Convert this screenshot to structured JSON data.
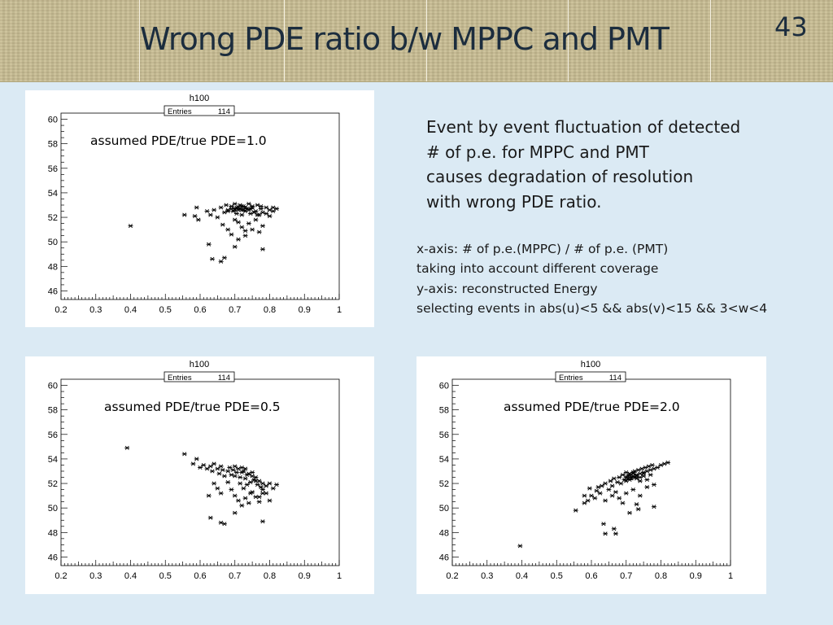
{
  "slide": {
    "title": "Wrong PDE ratio b/w MPPC and PMT",
    "page_number": "43"
  },
  "description": [
    "Event by event fluctuation of detected",
    "# of p.e. for MPPC and PMT",
    "causes degradation of resolution",
    "with wrong PDE ratio."
  ],
  "axis_notes": [
    "x-axis:  # of p.e.(MPPC) / # of p.e. (PMT)",
    "taking into account different coverage",
    "y-axis: reconstructed Energy",
    "selecting events in abs(u)<5 && abs(v)<15 && 3<w<4"
  ],
  "chart_data": [
    {
      "type": "scatter",
      "title": "h100",
      "stats_label": "Entries",
      "stats_value": "114",
      "annotation": "assumed PDE/true PDE=1.0",
      "xlim": [
        0.2,
        1.0
      ],
      "ylim": [
        45.3,
        60.5
      ],
      "xticks": [
        "0.2",
        "0.3",
        "0.4",
        "0.5",
        "0.6",
        "0.7",
        "0.8",
        "0.9",
        "1"
      ],
      "yticks": [
        "46",
        "48",
        "50",
        "52",
        "54",
        "56",
        "58",
        "60"
      ],
      "points": [
        [
          0.4,
          51.3
        ],
        [
          0.555,
          52.2
        ],
        [
          0.585,
          52.1
        ],
        [
          0.59,
          52.8
        ],
        [
          0.595,
          51.8
        ],
        [
          0.62,
          52.5
        ],
        [
          0.63,
          52.2
        ],
        [
          0.64,
          52.6
        ],
        [
          0.65,
          52.0
        ],
        [
          0.66,
          52.8
        ],
        [
          0.665,
          51.4
        ],
        [
          0.67,
          52.4
        ],
        [
          0.675,
          53.0
        ],
        [
          0.68,
          52.6
        ],
        [
          0.69,
          52.9
        ],
        [
          0.695,
          52.5
        ],
        [
          0.7,
          53.1
        ],
        [
          0.7,
          52.7
        ],
        [
          0.705,
          52.3
        ],
        [
          0.71,
          52.8
        ],
        [
          0.715,
          53.0
        ],
        [
          0.72,
          52.6
        ],
        [
          0.72,
          52.2
        ],
        [
          0.725,
          52.9
        ],
        [
          0.73,
          52.5
        ],
        [
          0.735,
          52.7
        ],
        [
          0.74,
          53.1
        ],
        [
          0.745,
          52.3
        ],
        [
          0.75,
          52.8
        ],
        [
          0.76,
          52.5
        ],
        [
          0.765,
          53.0
        ],
        [
          0.77,
          52.2
        ],
        [
          0.775,
          52.7
        ],
        [
          0.78,
          52.4
        ],
        [
          0.79,
          52.8
        ],
        [
          0.8,
          52.6
        ],
        [
          0.81,
          52.8
        ],
        [
          0.82,
          52.7
        ],
        [
          0.7,
          51.8
        ],
        [
          0.71,
          51.6
        ],
        [
          0.72,
          51.2
        ],
        [
          0.73,
          50.9
        ],
        [
          0.74,
          51.5
        ],
        [
          0.75,
          51.0
        ],
        [
          0.76,
          51.8
        ],
        [
          0.77,
          50.8
        ],
        [
          0.78,
          51.3
        ],
        [
          0.68,
          51.0
        ],
        [
          0.69,
          50.6
        ],
        [
          0.7,
          49.6
        ],
        [
          0.71,
          50.2
        ],
        [
          0.73,
          50.5
        ],
        [
          0.625,
          49.8
        ],
        [
          0.635,
          48.6
        ],
        [
          0.66,
          48.4
        ],
        [
          0.67,
          48.7
        ],
        [
          0.78,
          49.4
        ],
        [
          0.68,
          52.5
        ],
        [
          0.69,
          52.7
        ],
        [
          0.7,
          52.6
        ],
        [
          0.705,
          52.8
        ],
        [
          0.71,
          52.6
        ],
        [
          0.715,
          52.7
        ],
        [
          0.72,
          52.9
        ],
        [
          0.725,
          52.6
        ],
        [
          0.73,
          52.8
        ],
        [
          0.74,
          52.6
        ],
        [
          0.75,
          52.9
        ],
        [
          0.745,
          52.7
        ],
        [
          0.755,
          52.4
        ],
        [
          0.765,
          52.2
        ],
        [
          0.775,
          52.9
        ],
        [
          0.79,
          52.3
        ],
        [
          0.8,
          52.1
        ],
        [
          0.81,
          52.5
        ]
      ]
    },
    {
      "type": "scatter",
      "title": "h100",
      "stats_label": "Entries",
      "stats_value": "114",
      "annotation": "assumed PDE/true PDE=0.5",
      "xlim": [
        0.2,
        1.0
      ],
      "ylim": [
        45.3,
        60.5
      ],
      "xticks": [
        "0.2",
        "0.3",
        "0.4",
        "0.5",
        "0.6",
        "0.7",
        "0.8",
        "0.9",
        "1"
      ],
      "yticks": [
        "46",
        "48",
        "50",
        "52",
        "54",
        "56",
        "58",
        "60"
      ],
      "points": [
        [
          0.39,
          54.9
        ],
        [
          0.555,
          54.4
        ],
        [
          0.58,
          53.6
        ],
        [
          0.59,
          54.0
        ],
        [
          0.6,
          53.3
        ],
        [
          0.61,
          53.5
        ],
        [
          0.62,
          53.2
        ],
        [
          0.63,
          53.4
        ],
        [
          0.635,
          53.0
        ],
        [
          0.64,
          53.6
        ],
        [
          0.65,
          53.2
        ],
        [
          0.655,
          52.8
        ],
        [
          0.66,
          53.4
        ],
        [
          0.665,
          53.1
        ],
        [
          0.67,
          52.6
        ],
        [
          0.68,
          53.0
        ],
        [
          0.685,
          53.3
        ],
        [
          0.69,
          52.7
        ],
        [
          0.695,
          53.1
        ],
        [
          0.7,
          53.4
        ],
        [
          0.705,
          52.9
        ],
        [
          0.71,
          53.2
        ],
        [
          0.715,
          52.5
        ],
        [
          0.72,
          52.9
        ],
        [
          0.725,
          53.0
        ],
        [
          0.73,
          52.4
        ],
        [
          0.735,
          52.7
        ],
        [
          0.74,
          52.8
        ],
        [
          0.745,
          52.1
        ],
        [
          0.75,
          52.6
        ],
        [
          0.755,
          52.3
        ],
        [
          0.76,
          52.5
        ],
        [
          0.765,
          51.9
        ],
        [
          0.77,
          52.2
        ],
        [
          0.775,
          51.7
        ],
        [
          0.78,
          52.0
        ],
        [
          0.79,
          51.8
        ],
        [
          0.8,
          52.0
        ],
        [
          0.81,
          51.6
        ],
        [
          0.82,
          51.9
        ],
        [
          0.625,
          51.0
        ],
        [
          0.64,
          52.0
        ],
        [
          0.65,
          51.6
        ],
        [
          0.66,
          51.2
        ],
        [
          0.7,
          51.0
        ],
        [
          0.71,
          50.6
        ],
        [
          0.72,
          50.2
        ],
        [
          0.73,
          50.8
        ],
        [
          0.74,
          50.4
        ],
        [
          0.75,
          51.3
        ],
        [
          0.76,
          50.9
        ],
        [
          0.77,
          50.5
        ],
        [
          0.78,
          51.2
        ],
        [
          0.7,
          49.6
        ],
        [
          0.78,
          48.9
        ],
        [
          0.63,
          49.2
        ],
        [
          0.66,
          48.8
        ],
        [
          0.67,
          48.7
        ],
        [
          0.68,
          52.1
        ],
        [
          0.69,
          51.5
        ],
        [
          0.7,
          52.6
        ],
        [
          0.715,
          52.0
        ],
        [
          0.725,
          51.6
        ],
        [
          0.735,
          51.9
        ],
        [
          0.745,
          51.2
        ],
        [
          0.72,
          53.3
        ],
        [
          0.73,
          53.2
        ],
        [
          0.75,
          52.9
        ],
        [
          0.76,
          52.2
        ],
        [
          0.78,
          51.5
        ],
        [
          0.79,
          51.2
        ],
        [
          0.8,
          50.6
        ],
        [
          0.77,
          50.9
        ]
      ]
    },
    {
      "type": "scatter",
      "title": "h100",
      "stats_label": "Entries",
      "stats_value": "114",
      "annotation": "assumed PDE/true PDE=2.0",
      "xlim": [
        0.2,
        1.0
      ],
      "ylim": [
        45.3,
        60.5
      ],
      "xticks": [
        "0.2",
        "0.3",
        "0.4",
        "0.5",
        "0.6",
        "0.7",
        "0.8",
        "0.9",
        "1"
      ],
      "yticks": [
        "46",
        "48",
        "50",
        "52",
        "54",
        "56",
        "58",
        "60"
      ],
      "points": [
        [
          0.395,
          46.9
        ],
        [
          0.555,
          49.8
        ],
        [
          0.58,
          50.4
        ],
        [
          0.58,
          51.0
        ],
        [
          0.59,
          50.6
        ],
        [
          0.595,
          51.6
        ],
        [
          0.6,
          51.0
        ],
        [
          0.61,
          50.8
        ],
        [
          0.615,
          51.4
        ],
        [
          0.62,
          51.7
        ],
        [
          0.625,
          51.2
        ],
        [
          0.63,
          51.8
        ],
        [
          0.64,
          52.0
        ],
        [
          0.65,
          51.5
        ],
        [
          0.655,
          52.2
        ],
        [
          0.66,
          51.8
        ],
        [
          0.665,
          52.4
        ],
        [
          0.67,
          51.3
        ],
        [
          0.675,
          52.1
        ],
        [
          0.68,
          52.5
        ],
        [
          0.685,
          52.0
        ],
        [
          0.69,
          52.7
        ],
        [
          0.695,
          52.3
        ],
        [
          0.7,
          52.9
        ],
        [
          0.705,
          52.4
        ],
        [
          0.71,
          52.7
        ],
        [
          0.715,
          52.5
        ],
        [
          0.72,
          52.8
        ],
        [
          0.725,
          53.0
        ],
        [
          0.73,
          52.6
        ],
        [
          0.735,
          53.1
        ],
        [
          0.74,
          52.8
        ],
        [
          0.745,
          53.2
        ],
        [
          0.75,
          52.9
        ],
        [
          0.755,
          53.3
        ],
        [
          0.76,
          53.0
        ],
        [
          0.765,
          53.4
        ],
        [
          0.77,
          53.1
        ],
        [
          0.775,
          53.5
        ],
        [
          0.78,
          53.2
        ],
        [
          0.79,
          53.3
        ],
        [
          0.8,
          53.5
        ],
        [
          0.81,
          53.6
        ],
        [
          0.82,
          53.7
        ],
        [
          0.7,
          52.5
        ],
        [
          0.71,
          52.3
        ],
        [
          0.72,
          52.6
        ],
        [
          0.73,
          52.4
        ],
        [
          0.74,
          52.2
        ],
        [
          0.75,
          52.6
        ],
        [
          0.76,
          52.3
        ],
        [
          0.77,
          52.7
        ],
        [
          0.66,
          51.0
        ],
        [
          0.68,
          50.8
        ],
        [
          0.7,
          51.2
        ],
        [
          0.72,
          51.5
        ],
        [
          0.74,
          51.0
        ],
        [
          0.76,
          51.7
        ],
        [
          0.78,
          51.9
        ],
        [
          0.64,
          50.6
        ],
        [
          0.69,
          50.4
        ],
        [
          0.73,
          50.3
        ],
        [
          0.635,
          48.7
        ],
        [
          0.64,
          47.9
        ],
        [
          0.665,
          48.3
        ],
        [
          0.67,
          47.9
        ],
        [
          0.71,
          49.6
        ],
        [
          0.735,
          49.9
        ],
        [
          0.78,
          50.1
        ],
        [
          0.7,
          52.2
        ],
        [
          0.705,
          52.6
        ],
        [
          0.71,
          52.8
        ],
        [
          0.715,
          52.4
        ],
        [
          0.72,
          52.9
        ],
        [
          0.725,
          52.5
        ],
        [
          0.73,
          52.7
        ],
        [
          0.74,
          52.5
        ],
        [
          0.75,
          52.8
        ]
      ]
    }
  ]
}
